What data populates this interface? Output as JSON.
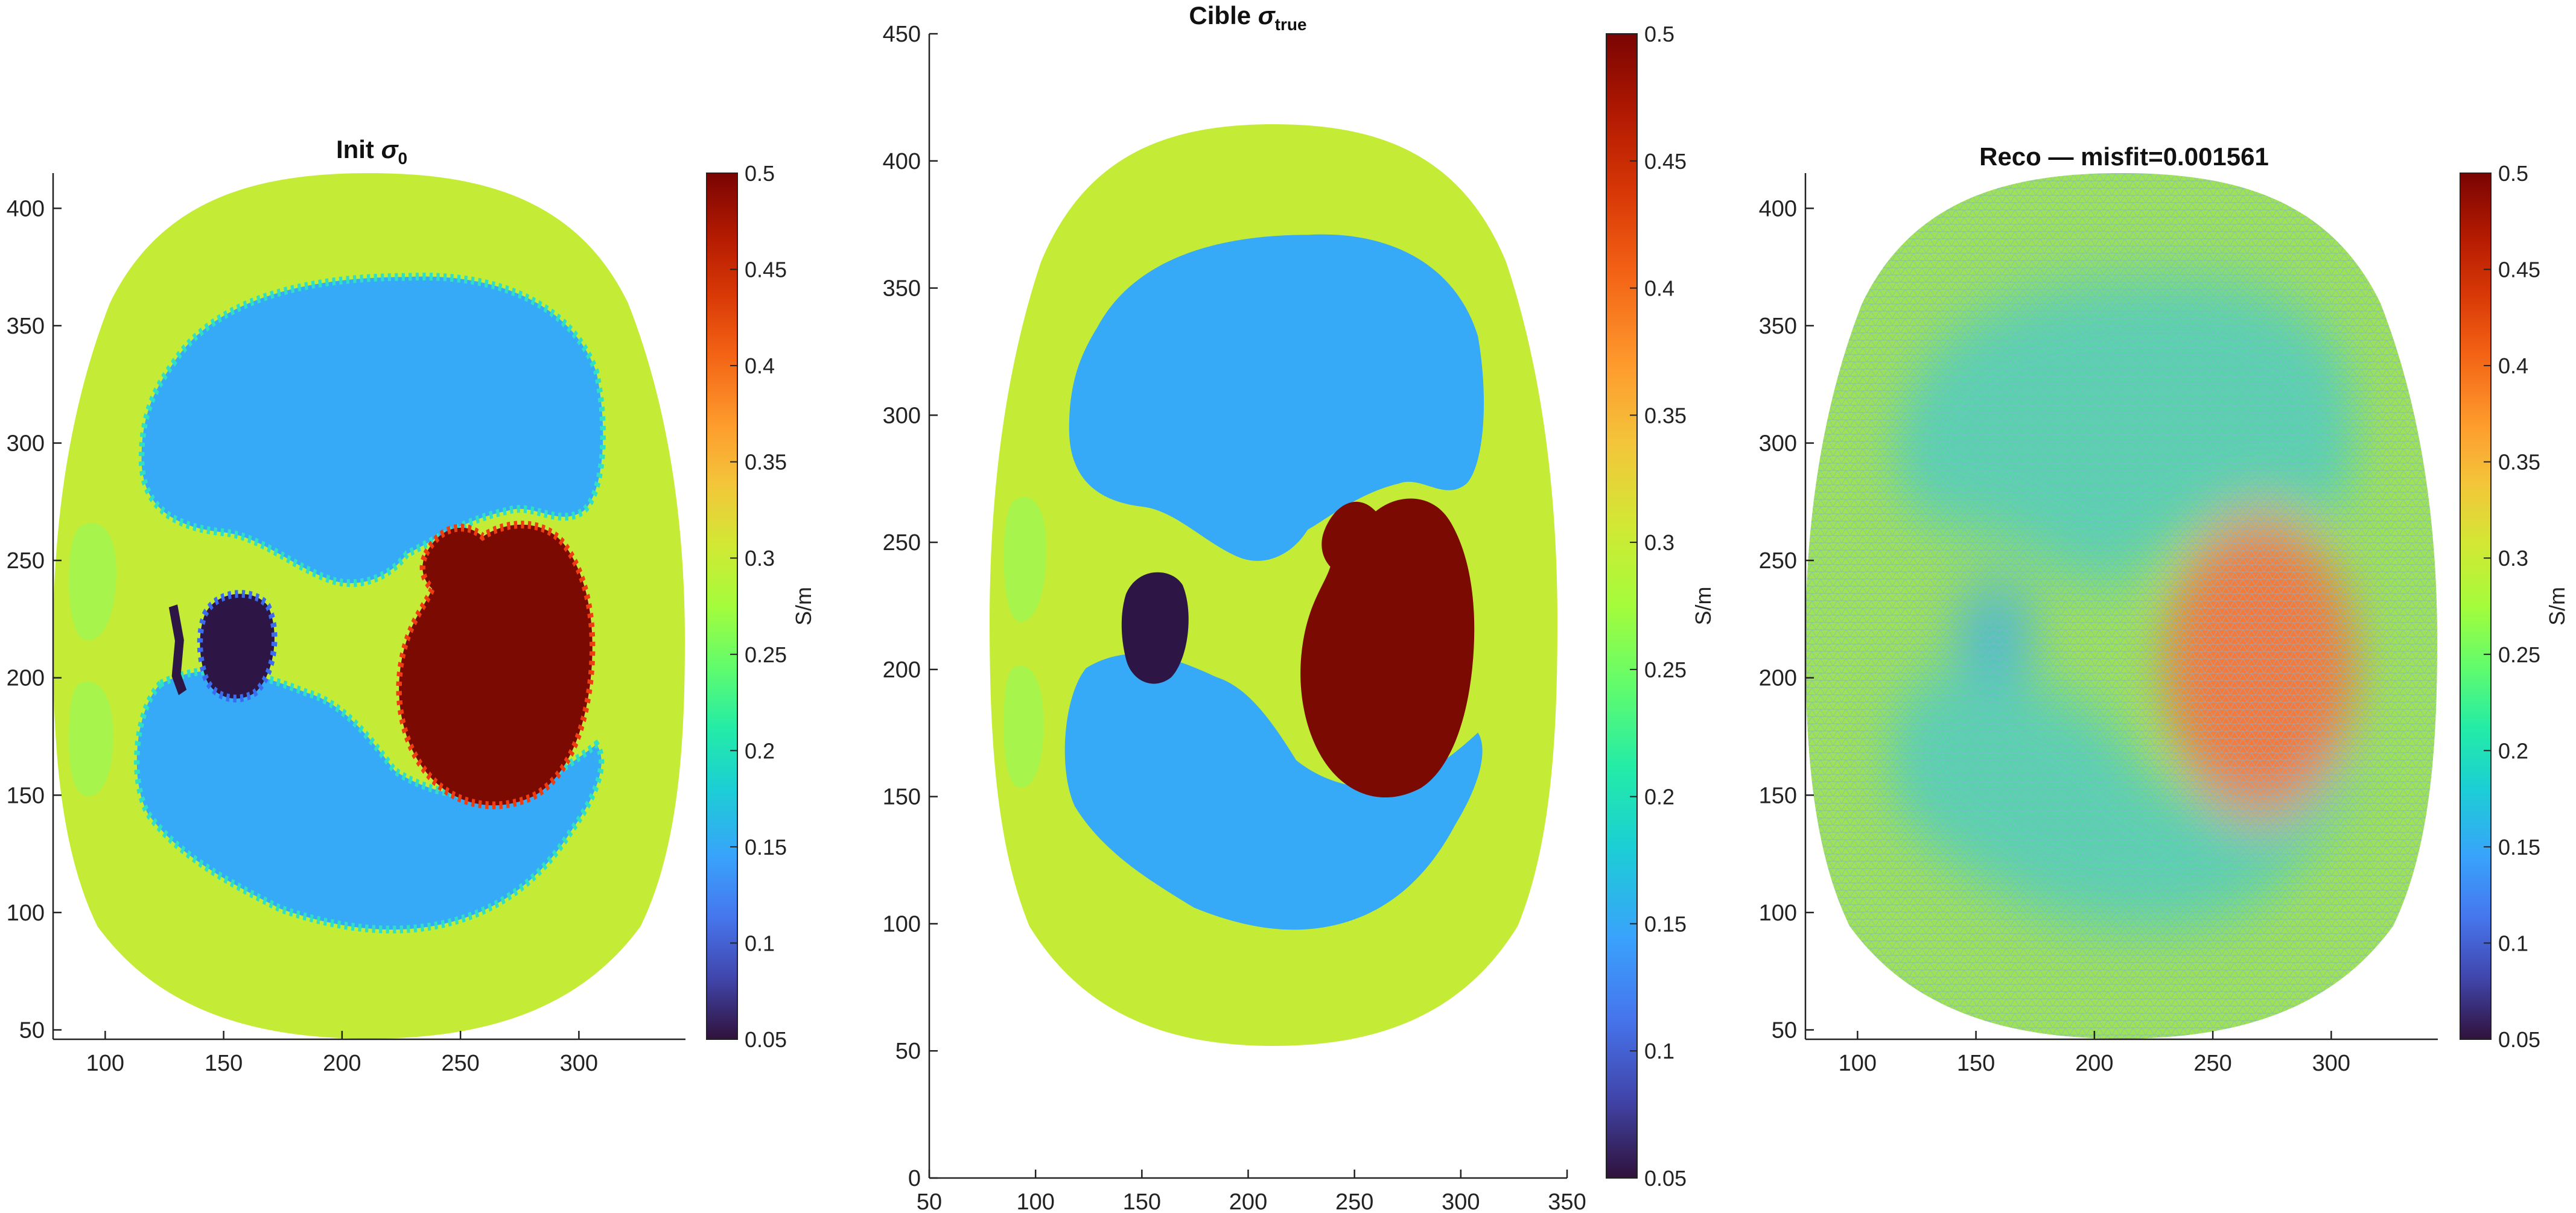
{
  "chart_data": [
    {
      "type": "heatmap",
      "title_main": "Init",
      "title_math": "σ",
      "title_sub": "0",
      "title_tail": "",
      "xlim": [
        78,
        345
      ],
      "ylim": [
        46,
        415
      ],
      "xticks": [
        100,
        150,
        200,
        250,
        300
      ],
      "yticks": [
        50,
        100,
        150,
        200,
        250,
        300,
        350,
        400
      ],
      "colorbar": {
        "ticks": [
          "0.5",
          "0.45",
          "0.4",
          "0.35",
          "0.3",
          "0.25",
          "0.2",
          "0.15",
          "0.1",
          "0.05"
        ],
        "label": "S/m",
        "range": [
          0.05,
          0.5
        ]
      },
      "region_values": {
        "body": 0.28,
        "lungs": 0.15,
        "heart": 0.5,
        "vessel": 0.05,
        "side_ovals": 0.25
      }
    },
    {
      "type": "heatmap",
      "title_main": "Cible",
      "title_math": "σ",
      "title_sub": "true",
      "title_tail": "",
      "xlim": [
        50,
        350
      ],
      "ylim": [
        0,
        450
      ],
      "xticks": [
        50,
        100,
        150,
        200,
        250,
        300,
        350
      ],
      "yticks": [
        0,
        50,
        100,
        150,
        200,
        250,
        300,
        350,
        400,
        450
      ],
      "colorbar": {
        "ticks": [
          "0.5",
          "0.45",
          "0.4",
          "0.35",
          "0.3",
          "0.25",
          "0.2",
          "0.15",
          "0.1",
          "0.05"
        ],
        "label": "S/m",
        "range": [
          0.05,
          0.5
        ]
      },
      "region_values": {
        "body": 0.28,
        "lungs": 0.15,
        "heart": 0.5,
        "vessel": 0.05,
        "side_ovals": 0.25
      }
    },
    {
      "type": "heatmap",
      "title_main": "Reco — misfit=0.001561",
      "title_math": "",
      "title_sub": "",
      "title_tail": "",
      "xlim": [
        78,
        345
      ],
      "ylim": [
        46,
        415
      ],
      "xticks": [
        100,
        150,
        200,
        250,
        300
      ],
      "yticks": [
        50,
        100,
        150,
        200,
        250,
        300,
        350,
        400
      ],
      "colorbar": {
        "ticks": [
          "0.5",
          "0.45",
          "0.4",
          "0.35",
          "0.3",
          "0.25",
          "0.2",
          "0.15",
          "0.1",
          "0.05"
        ],
        "label": "S/m",
        "range": [
          0.05,
          0.5
        ]
      },
      "region_values": {
        "body": 0.27,
        "lungs": 0.21,
        "heart": 0.38,
        "vessel": 0.2,
        "side_ovals": 0.25
      }
    }
  ],
  "colors": {
    "body": "#c4ec36",
    "lung": "#36a9f7",
    "heart": "#7b0a03",
    "vessel": "#2d1645",
    "side_oval": "#a6f44c",
    "reco_body": "#9fe255",
    "reco_lung": "#4cd0ba",
    "reco_heart": "#f4793b",
    "mesh": "#7fb2d8"
  }
}
